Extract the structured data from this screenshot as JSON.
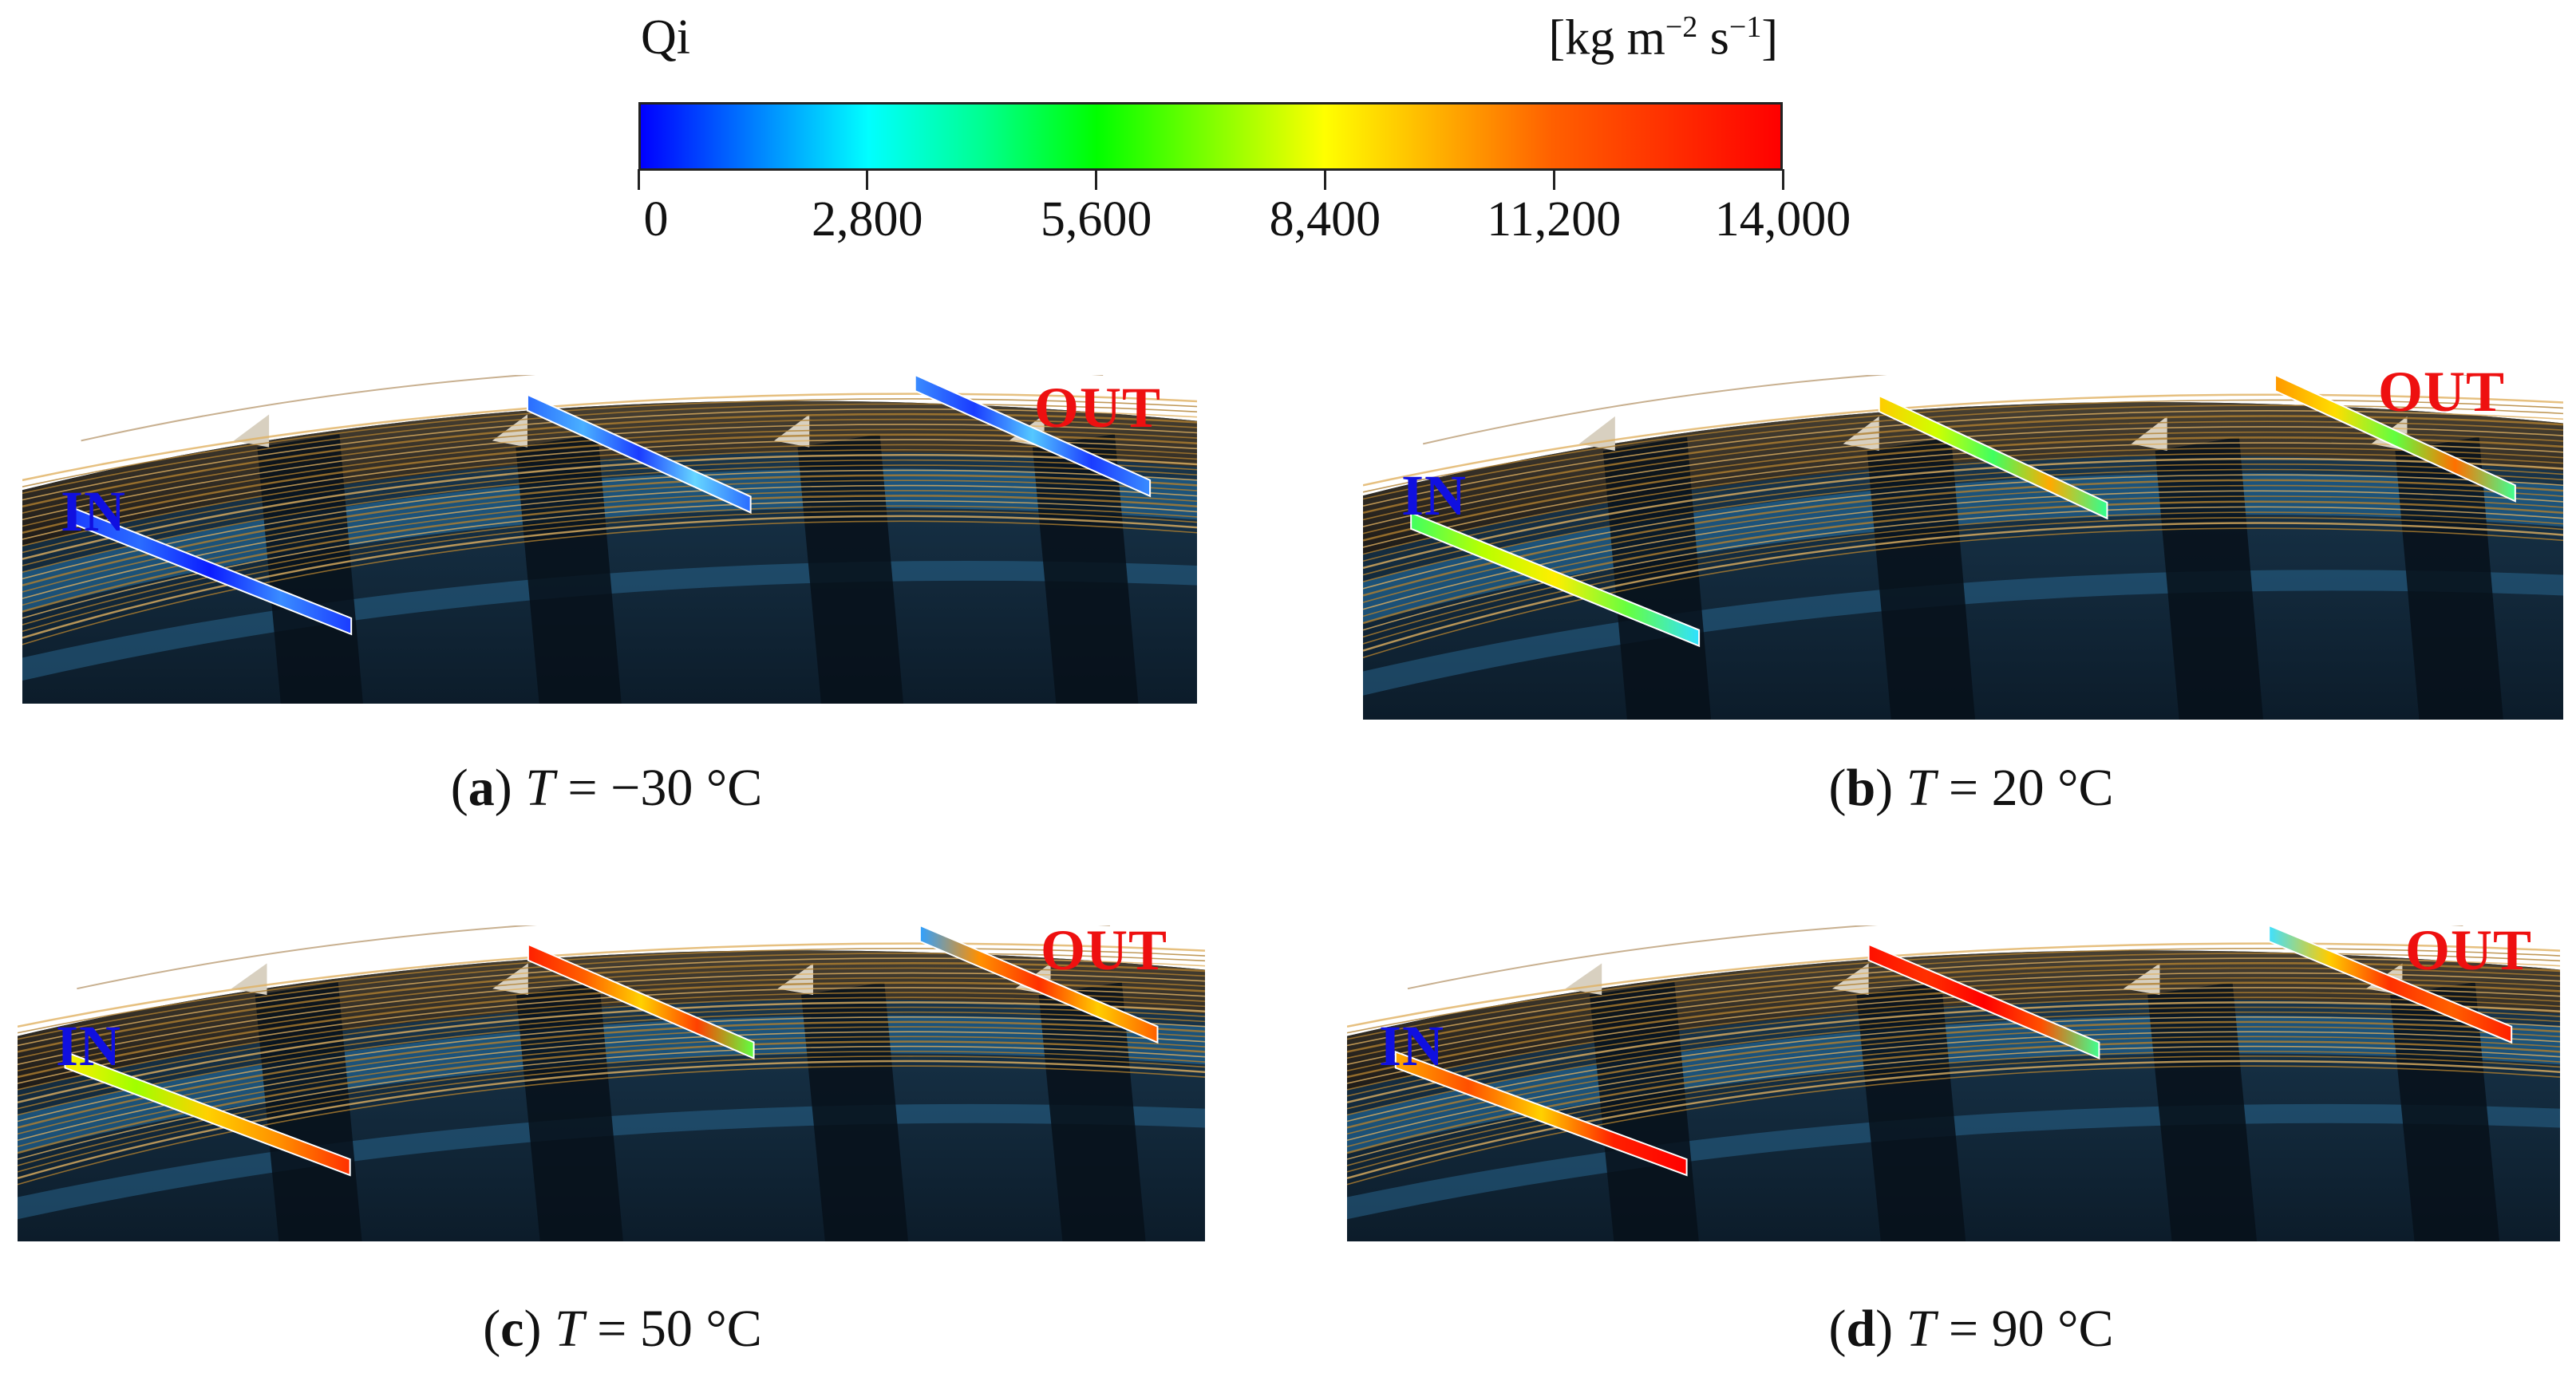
{
  "colorbar": {
    "variable": "Qi",
    "unit_base": "[kg m",
    "unit_exp1": "−2",
    "unit_mid": " s",
    "unit_exp2": "−1",
    "unit_end": "]",
    "ticks": [
      "0",
      "2,800",
      "5,600",
      "8,400",
      "11,200",
      "14,000"
    ],
    "range": [
      0,
      14000
    ]
  },
  "labels": {
    "inlet": "IN",
    "outlet": "OUT"
  },
  "panels": [
    {
      "tag": "a",
      "open": "(",
      "close": ")",
      "var": "T",
      "value": " = −30 °C",
      "slice_colors": {
        "in": [
          "#1a3cff",
          "#2a6cff",
          "#0b1cff",
          "#3a8cff",
          "#1a3cff"
        ],
        "mid": [
          "#2a6cff",
          "#4ab0ff",
          "#1a3cff",
          "#66d6ff",
          "#2a6cff"
        ],
        "out": [
          "#3a8cff",
          "#1a3cff",
          "#55c8ff",
          "#1a3cff",
          "#3a8cff"
        ]
      }
    },
    {
      "tag": "b",
      "open": "(",
      "close": ")",
      "var": "T",
      "value": " = 20 °C",
      "slice_colors": {
        "in": [
          "#40ff60",
          "#b8ff00",
          "#ffee00",
          "#66ff40",
          "#30e0ff"
        ],
        "mid": [
          "#ffcc00",
          "#d0ff00",
          "#40ff60",
          "#ffaa00",
          "#30ff90"
        ],
        "out": [
          "#ff9900",
          "#ffdd00",
          "#60ff40",
          "#ff7000",
          "#40ff90"
        ]
      }
    },
    {
      "tag": "c",
      "open": "(",
      "close": ")",
      "var": "T",
      "value": " = 50 °C",
      "slice_colors": {
        "in": [
          "#ffee00",
          "#a0ff00",
          "#ffd000",
          "#ff9000",
          "#ff3000"
        ],
        "mid": [
          "#ff2000",
          "#ff6000",
          "#ffd000",
          "#ff4000",
          "#60ff40"
        ],
        "out": [
          "#30a0ff",
          "#ff9000",
          "#ff3000",
          "#ffcc00",
          "#ff6000"
        ]
      }
    },
    {
      "tag": "d",
      "open": "(",
      "close": ")",
      "var": "T",
      "value": " = 90 °C",
      "slice_colors": {
        "in": [
          "#ffaa00",
          "#ff5000",
          "#ffd000",
          "#ff2000",
          "#ff0000"
        ],
        "mid": [
          "#ff1000",
          "#ff3000",
          "#ff0000",
          "#ff5000",
          "#40ff90"
        ],
        "out": [
          "#40e0ff",
          "#ffcc00",
          "#ff3000",
          "#ff6000",
          "#ff2000"
        ]
      }
    }
  ]
}
